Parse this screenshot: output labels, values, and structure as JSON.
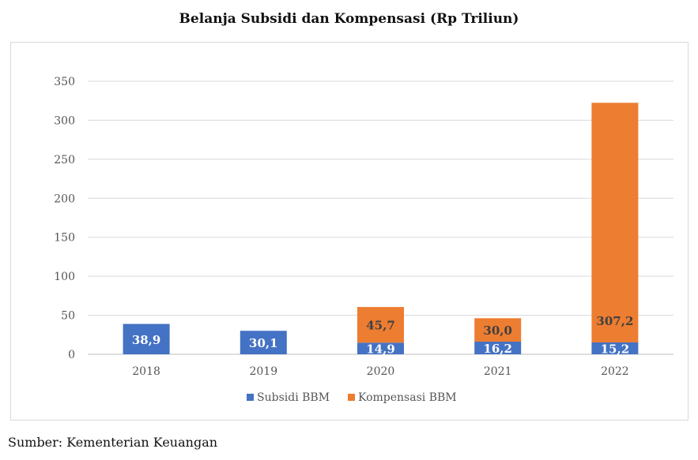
{
  "chart_data": {
    "type": "bar",
    "stacked": true,
    "title": "Belanja Subsidi dan Kompensasi (Rp Triliun)",
    "categories": [
      "2018",
      "2019",
      "2020",
      "2021",
      "2022"
    ],
    "series": [
      {
        "name": "Subsidi BBM",
        "color": "#4472C4",
        "values": [
          38.9,
          30.1,
          14.9,
          16.2,
          15.2
        ],
        "labels": [
          "38,9",
          "30,1",
          "14,9",
          "16,2",
          "15,2"
        ]
      },
      {
        "name": "Kompensasi BBM",
        "color": "#ED7D31",
        "values": [
          null,
          null,
          45.7,
          30.0,
          307.2
        ],
        "labels": [
          "",
          "",
          "45,7",
          "30,0",
          "307,2"
        ]
      }
    ],
    "ylim": [
      0,
      350
    ],
    "yticks": [
      0,
      50,
      100,
      150,
      200,
      250,
      300,
      350
    ],
    "grid": true,
    "legend": "bottom"
  },
  "source": "Sumber: Kementerian Keuangan"
}
